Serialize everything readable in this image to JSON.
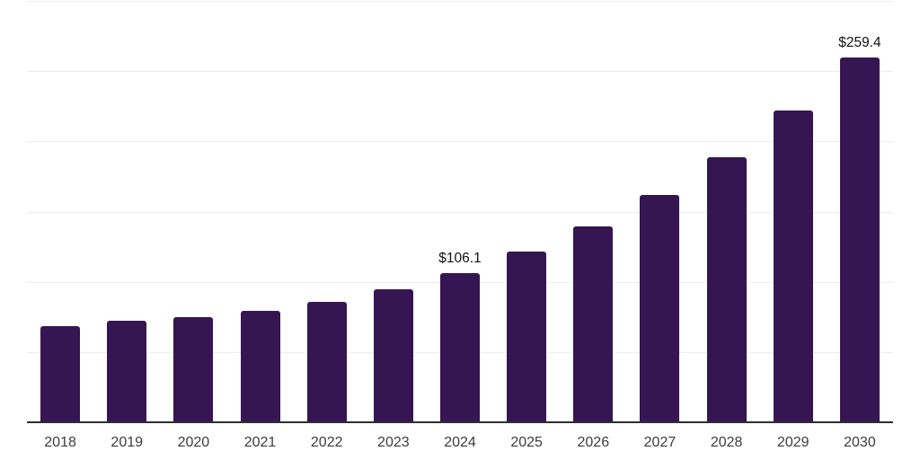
{
  "chart_data": {
    "type": "bar",
    "title": "",
    "xlabel": "",
    "ylabel": "",
    "categories": [
      "2018",
      "2019",
      "2020",
      "2021",
      "2022",
      "2023",
      "2024",
      "2025",
      "2026",
      "2027",
      "2028",
      "2029",
      "2030"
    ],
    "values": [
      68.4,
      72.3,
      74.8,
      79.3,
      85.7,
      94.7,
      106.1,
      121.5,
      139.5,
      161.8,
      188.7,
      222.0,
      259.4
    ],
    "point_labels": {
      "2024": "$106.1",
      "2030": "$259.4"
    },
    "ylim": [
      0,
      300
    ],
    "gridline_step": 50,
    "grid": "horizontal",
    "legend": "none",
    "y_tick_labels_visible": false,
    "colors": {
      "bar": "#351652",
      "axis_line": "#2f2f2f",
      "gridline": "#ededed",
      "point_label": "#111111",
      "tick_label": "#3c3c3c",
      "background": "#ffffff"
    }
  }
}
